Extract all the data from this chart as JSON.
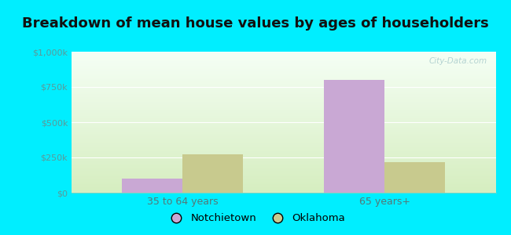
{
  "title": "Breakdown of mean house values by ages of householders",
  "categories": [
    "35 to 64 years",
    "65 years+"
  ],
  "notchietown_values": [
    100000,
    800000
  ],
  "oklahoma_values": [
    270000,
    215000
  ],
  "notchietown_color": "#c9a8d4",
  "oklahoma_color": "#c8ca8e",
  "ylim": [
    0,
    1000000
  ],
  "yticks": [
    0,
    250000,
    500000,
    750000,
    1000000
  ],
  "ytick_labels": [
    "$0",
    "$250k",
    "$500k",
    "$750k",
    "$1,000k"
  ],
  "background_color": "#00eeff",
  "grad_bottom": "#d6eec0",
  "grad_top": "#f5fff5",
  "title_fontsize": 13,
  "bar_width": 0.3,
  "legend_labels": [
    "Notchietown",
    "Oklahoma"
  ],
  "watermark": "City-Data.com"
}
